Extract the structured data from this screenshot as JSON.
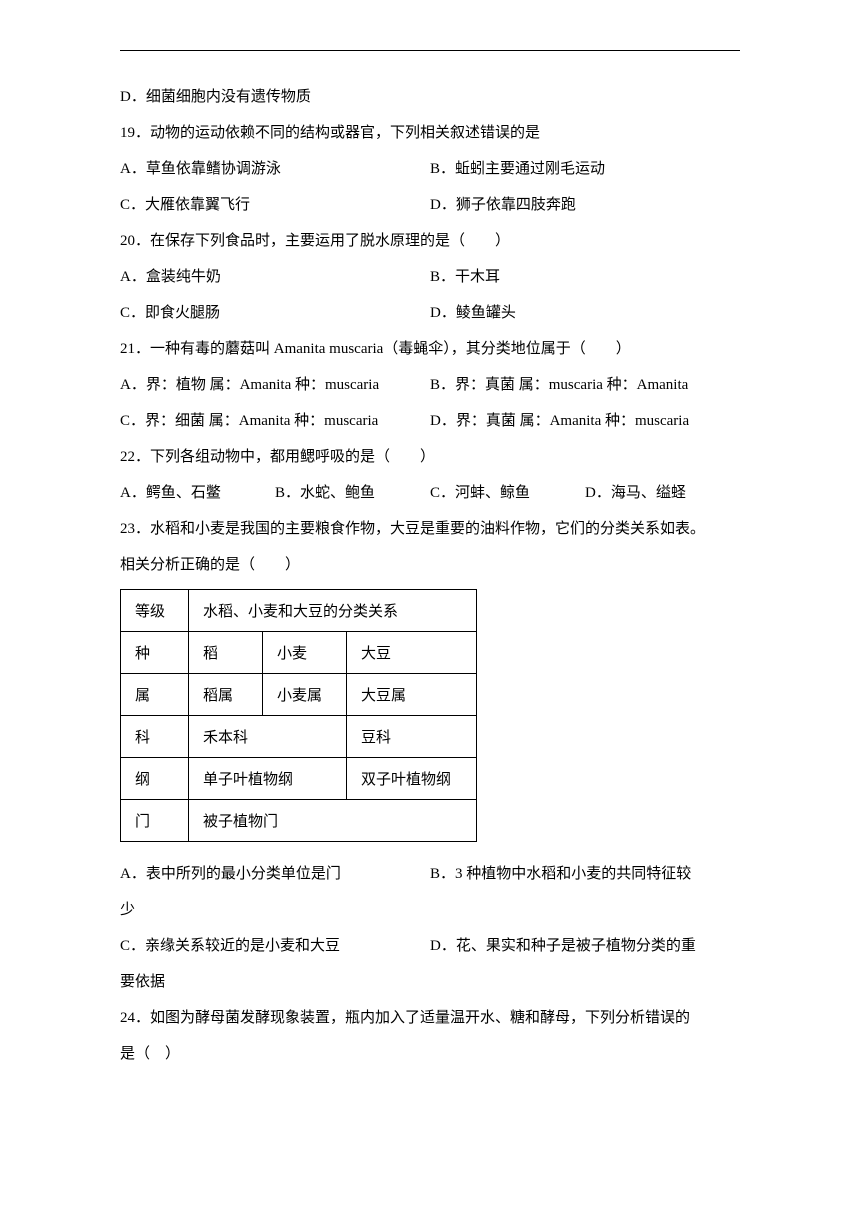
{
  "q18": {
    "optD": "D．细菌细胞内没有遗传物质"
  },
  "q19": {
    "stem": "19．动物的运动依赖不同的结构或器官，下列相关叙述错误的是",
    "optA": "A．草鱼依靠鳍协调游泳",
    "optB": "B．蚯蚓主要通过刚毛运动",
    "optC": "C．大雁依靠翼飞行",
    "optD": "D．狮子依靠四肢奔跑"
  },
  "q20": {
    "stem": "20．在保存下列食品时，主要运用了脱水原理的是（　　）",
    "optA": "A．盒装纯牛奶",
    "optB": "B．干木耳",
    "optC": "C．即食火腿肠",
    "optD": "D．鲮鱼罐头"
  },
  "q21": {
    "stem": "21．一种有毒的蘑菇叫 Amanita muscaria（毒蝇伞），其分类地位属于（　　）",
    "optA": "A．界：植物 属：Amanita 种：muscaria",
    "optB": "B．界：真菌 属：muscaria 种：Amanita",
    "optC": "C．界：细菌 属：Amanita 种：muscaria",
    "optD": "D．界：真菌 属：Amanita 种：muscaria"
  },
  "q22": {
    "stem": "22．下列各组动物中，都用鳃呼吸的是（　　）",
    "optA": "A．鳄鱼、石鳖",
    "optB": "B．水蛇、鲍鱼",
    "optC": "C．河蚌、鲸鱼",
    "optD": "D．海马、缢蛏"
  },
  "q23": {
    "stem1": "23．水稻和小麦是我国的主要粮食作物，大豆是重要的油料作物，它们的分类关系如表。",
    "stem2": "相关分析正确的是（　　）",
    "table": {
      "header": {
        "level": "等级",
        "rel": "水稻、小麦和大豆的分类关系"
      },
      "rows": [
        {
          "level": "种",
          "c1": "稻",
          "c2": "小麦",
          "c3": "大豆"
        },
        {
          "level": "属",
          "c1": "稻属",
          "c2": "小麦属",
          "c3": "大豆属"
        },
        {
          "level": "科",
          "c12": "禾本科",
          "c3": "豆科"
        },
        {
          "level": "纲",
          "c12": "单子叶植物纲",
          "c3": "双子叶植物纲"
        },
        {
          "level": "门",
          "c123": "被子植物门"
        }
      ]
    },
    "optA": "A．表中所列的最小分类单位是门",
    "optB_l1": "B．3 种植物中水稻和小麦的共同特征较",
    "optB_l2": "少",
    "optC": "C．亲缘关系较近的是小麦和大豆",
    "optD_l1": "D．花、果实和种子是被子植物分类的重",
    "optD_l2": "要依据"
  },
  "q24": {
    "stem1": "24．如图为酵母菌发酵现象装置，瓶内加入了适量温开水、糖和酵母，下列分析错误的",
    "stem2": "是（　）"
  }
}
